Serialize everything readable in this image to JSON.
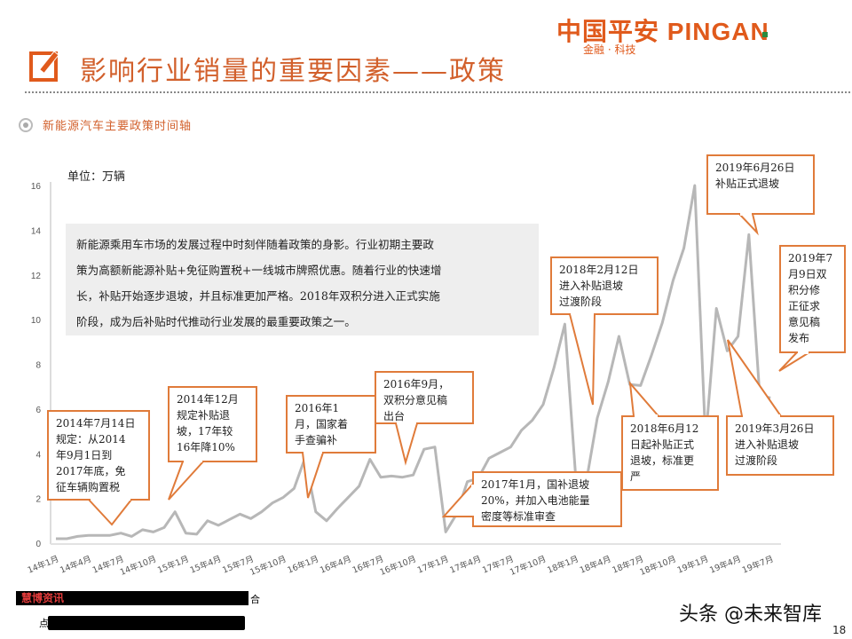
{
  "logo": {
    "main": "中国平安 PINGAN",
    "sub": "金融 · 科技",
    "accent": "#e05a1c"
  },
  "header": {
    "title": "影响行业销量的重要因素——政策",
    "icon": "pencil-checkbox-icon"
  },
  "section": {
    "subtitle": "新能源汽车主要政策时间轴",
    "icon": "radio-bullet-icon"
  },
  "chart_data": {
    "type": "line",
    "title": "新能源汽车主要政策时间轴",
    "ylabel": "单位：万辆",
    "xlabel": "",
    "ylim": [
      0,
      16
    ],
    "yticks": [
      0,
      2,
      4,
      6,
      8,
      10,
      12,
      14,
      16
    ],
    "grid": false,
    "legend": "none",
    "line_color": "#b7b7b7",
    "x_tick_labels": [
      "14年1月",
      "14年4月",
      "14年7月",
      "14年10月",
      "15年1月",
      "15年4月",
      "15年7月",
      "15年10月",
      "16年1月",
      "16年4月",
      "16年7月",
      "16年10月",
      "17年1月",
      "17年4月",
      "17年7月",
      "17年10月",
      "18年1月",
      "18年4月",
      "18年7月",
      "18年10月",
      "19年1月",
      "19年4月",
      "19年7月"
    ],
    "x": [
      "14-01",
      "14-02",
      "14-03",
      "14-04",
      "14-05",
      "14-06",
      "14-07",
      "14-08",
      "14-09",
      "14-10",
      "14-11",
      "14-12",
      "15-01",
      "15-02",
      "15-03",
      "15-04",
      "15-05",
      "15-06",
      "15-07",
      "15-08",
      "15-09",
      "15-10",
      "15-11",
      "15-12",
      "16-01",
      "16-02",
      "16-03",
      "16-04",
      "16-05",
      "16-06",
      "16-07",
      "16-08",
      "16-09",
      "16-10",
      "16-11",
      "16-12",
      "17-01",
      "17-02",
      "17-03",
      "17-04",
      "17-05",
      "17-06",
      "17-07",
      "17-08",
      "17-09",
      "17-10",
      "17-11",
      "17-12",
      "18-01",
      "18-02",
      "18-03",
      "18-04",
      "18-05",
      "18-06",
      "18-07",
      "18-08",
      "18-09",
      "18-10",
      "18-11",
      "18-12",
      "19-01",
      "19-02",
      "19-03",
      "19-04",
      "19-05",
      "19-06",
      "19-07"
    ],
    "values": [
      0.2,
      0.2,
      0.3,
      0.35,
      0.35,
      0.35,
      0.45,
      0.3,
      0.6,
      0.5,
      0.7,
      1.4,
      0.45,
      0.4,
      1.0,
      0.8,
      1.05,
      1.3,
      1.1,
      1.4,
      1.8,
      2.05,
      2.45,
      3.8,
      1.4,
      1.0,
      1.55,
      2.05,
      2.55,
      3.75,
      2.95,
      3.0,
      2.95,
      3.05,
      4.2,
      4.3,
      0.5,
      1.3,
      2.75,
      2.9,
      3.8,
      4.05,
      4.3,
      5.05,
      5.5,
      6.2,
      7.85,
      9.8,
      3.0,
      2.8,
      5.6,
      7.2,
      9.25,
      7.1,
      7.05,
      8.4,
      9.85,
      11.75,
      13.2,
      16.0,
      4.6,
      10.5,
      8.6,
      9.25,
      13.8,
      6.6,
      6.5
    ],
    "annotations": [
      {
        "text": "2014年7月14日规定：从2014年9月1日到2017年底，免征车辆购置税",
        "points_to": "14-07"
      },
      {
        "text": "2014年12月规定补贴退坡，17年较16年降10%",
        "points_to": "14-12"
      },
      {
        "text": "2016年1月，国家着手查骗补",
        "points_to": "16-01"
      },
      {
        "text": "2016年9月，双积分意见稿出台",
        "points_to": "16-09"
      },
      {
        "text": "2017年1月，国补退坡20%，并加入电池能量密度等标准审查",
        "points_to": "17-01"
      },
      {
        "text": "2018年2月12日进入补贴退坡过渡阶段",
        "points_to": "18-02"
      },
      {
        "text": "2018年6月12日起补贴正式退坡，标准更严",
        "points_to": "18-06"
      },
      {
        "text": "2019年3月26日进入补贴退坡过渡阶段",
        "points_to": "19-03"
      },
      {
        "text": "2019年6月26日补贴正式退坡",
        "points_to": "19-06"
      },
      {
        "text": "2019年7月9日双积分修正征求意见稿发布",
        "points_to": "19-07"
      }
    ]
  },
  "chart": {
    "unit_label": "单位：万辆",
    "note": "新能源乘用车市场的发展过程中时刻伴随着政策的身影。行业初期主要政策为高额新能源补贴+免征购置税+一线城市牌照优惠。随着行业的快速增长，补贴开始逐步退坡，并且标准更加严格。2018年双积分进入正式实施阶段，成为后补贴时代推动行业发展的最重要政策之一。",
    "note_lines": [
      "新能源乘用车市场的发展过程中时刻伴随着政策的身影。行业初期主要政",
      "策为高额新能源补贴+免征购置税+一线城市牌照优惠。随着行业的快速增",
      "长，补贴开始逐步退坡，并且标准更加严格。2018年双积分进入正式实施",
      "阶段，成为后补贴时代推动行业发展的最重要政策之一。"
    ],
    "callouts": [
      {
        "lines": [
          "2014年7月14日",
          "规定：从2014",
          "年9月1日到",
          "2017年底，免",
          "征车辆购置税"
        ]
      },
      {
        "lines": [
          "2014年12月",
          "规定补贴退",
          "坡，17年较",
          "16年降10%"
        ]
      },
      {
        "lines": [
          "2016年1",
          "月，国家着",
          "手查骗补"
        ]
      },
      {
        "lines": [
          "2016年9月，",
          "双积分意见稿",
          "出台"
        ]
      },
      {
        "lines": [
          "2017年1月，国补退坡",
          "20%，并加入电池能量",
          "密度等标准审查"
        ]
      },
      {
        "lines": [
          "2018年2月12日",
          "进入补贴退坡",
          "过渡阶段"
        ]
      },
      {
        "lines": [
          "2018年6月12",
          "日起补贴正式",
          "退坡，标准更",
          "严"
        ]
      },
      {
        "lines": [
          "2019年3月26日",
          "进入补贴退坡",
          "过渡阶段"
        ]
      },
      {
        "lines": [
          "2019年6月26日",
          "补贴正式退坡"
        ]
      },
      {
        "lines": [
          "2019年7",
          "月9日双",
          "积分修",
          "正征求",
          "意见稿",
          "发布"
        ]
      }
    ]
  },
  "footer": {
    "source_red": "慧博资讯",
    "source_char_end": "合",
    "line2_char": "点",
    "watermark": "头条 @未来智库",
    "page_number": "18"
  }
}
